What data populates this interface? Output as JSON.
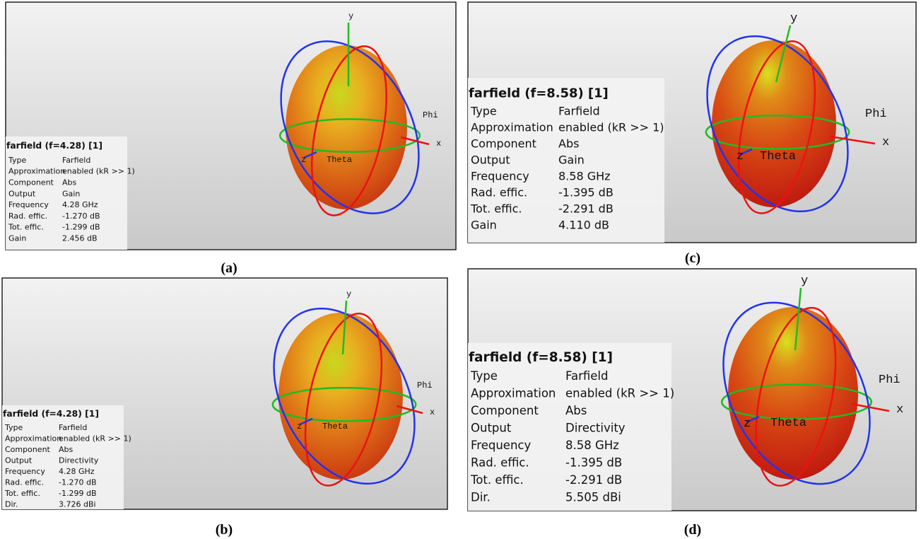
{
  "panels": [
    {
      "caption": "(a)",
      "title": "farfield (f=4.28) [1]",
      "rows": [
        [
          "Type",
          "Farfield"
        ],
        [
          "Approximation",
          "enabled (kR >> 1)"
        ],
        [
          "Component",
          "Abs"
        ],
        [
          "Output",
          "Gain"
        ],
        [
          "Frequency",
          "4.28 GHz"
        ],
        [
          "Rad. effic.",
          "-1.270 dB"
        ],
        [
          "Tot. effic.",
          "-1.299 dB"
        ],
        [
          "Gain",
          "2.456 dB"
        ]
      ],
      "axis_labels": {
        "y": "y",
        "x": "x",
        "z": "z",
        "phi": "Phi",
        "theta": "Theta"
      }
    },
    {
      "caption": "(b)",
      "title": "farfield (f=4.28) [1]",
      "rows": [
        [
          "Type",
          "Farfield"
        ],
        [
          "Approximation",
          "enabled (kR >> 1)"
        ],
        [
          "Component",
          "Abs"
        ],
        [
          "Output",
          "Directivity"
        ],
        [
          "Frequency",
          "4.28 GHz"
        ],
        [
          "Rad. effic.",
          "-1.270 dB"
        ],
        [
          "Tot. effic.",
          "-1.299 dB"
        ],
        [
          "Dir.",
          "3.726 dBi"
        ]
      ],
      "axis_labels": {
        "y": "y",
        "x": "x",
        "z": "z",
        "phi": "Phi",
        "theta": "Theta"
      }
    },
    {
      "caption": "(c)",
      "title": "farfield (f=8.58) [1]",
      "rows": [
        [
          "Type",
          "Farfield"
        ],
        [
          "Approximation",
          "enabled (kR >> 1)"
        ],
        [
          "Component",
          "Abs"
        ],
        [
          "Output",
          "Gain"
        ],
        [
          "Frequency",
          "8.58 GHz"
        ],
        [
          "Rad. effic.",
          "-1.395 dB"
        ],
        [
          "Tot. effic.",
          "-2.291 dB"
        ],
        [
          "Gain",
          "4.110 dB"
        ]
      ],
      "axis_labels": {
        "y": "y",
        "x": "x",
        "z": "z",
        "phi": "Phi",
        "theta": "Theta"
      }
    },
    {
      "caption": "(d)",
      "title": "farfield (f=8.58) [1]",
      "rows": [
        [
          "Type",
          "Farfield"
        ],
        [
          "Approximation",
          "enabled (kR >> 1)"
        ],
        [
          "Component",
          "Abs"
        ],
        [
          "Output",
          "Directivity"
        ],
        [
          "Frequency",
          "8.58 GHz"
        ],
        [
          "Rad. effic.",
          "-1.395 dB"
        ],
        [
          "Tot. effic.",
          "-2.291 dB"
        ],
        [
          "Dir.",
          "5.505 dBi"
        ]
      ],
      "axis_labels": {
        "y": "y",
        "x": "x",
        "z": "z",
        "phi": "Phi",
        "theta": "Theta"
      }
    }
  ]
}
